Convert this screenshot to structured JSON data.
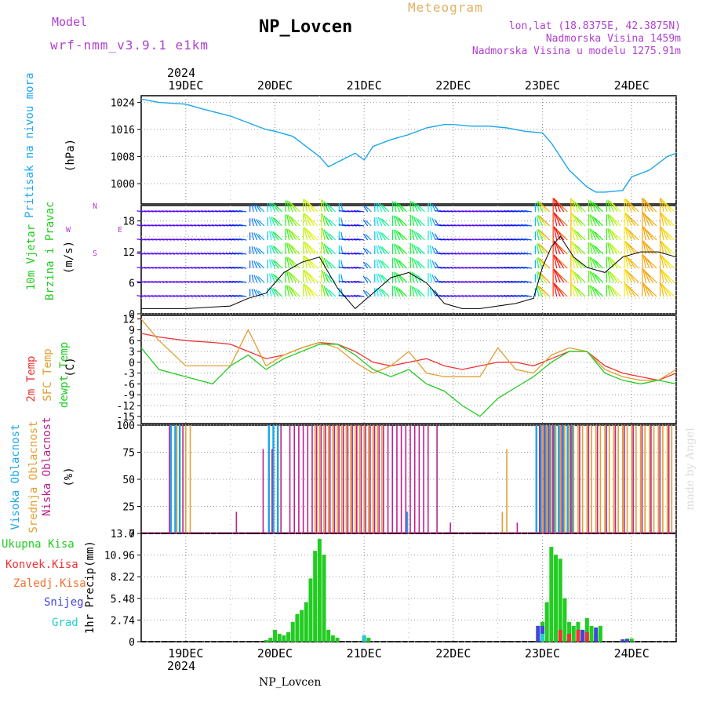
{
  "header": {
    "model_label": "Model",
    "model_name": "wrf-nmm_v3.9.1 e1km",
    "title": "NP_Lovcen",
    "meteogram_label": "Meteogram",
    "lonlat": "lon,lat (18.8375E, 42.3875N)",
    "elevation": "Nadmorska Visina 1459m",
    "elevation_model": "Nadmorska Visina u modelu 1275.91m",
    "year_top": "2024",
    "year_bottom": "2024",
    "footer": "NP_Lovcen",
    "watermark": "made by Angel"
  },
  "x_axis": {
    "days": [
      "19DEC",
      "20DEC",
      "21DEC",
      "22DEC",
      "23DEC",
      "24DEC"
    ],
    "start_day_offset": -0.5,
    "end_day_offset": 5.5
  },
  "panels": {
    "pressure": {
      "ylabel_main": "Pritisak na nivou mora",
      "ylabel_unit": "(hPa)",
      "ticks": [
        "1024",
        "1016",
        "1008",
        "1000"
      ]
    },
    "wind": {
      "ylabel_main": "10m Vjetar",
      "ylabel_sub": "Brzina i Pravac",
      "ylabel_unit": "(m/s)",
      "ticks": [
        "18",
        "12",
        "6",
        "0"
      ],
      "ticks_minor": [
        "15",
        "9",
        "3"
      ],
      "compass": {
        "n": "N",
        "s": "S",
        "e": "E",
        "w": "W"
      }
    },
    "temp": {
      "ylabel_1": "2m Temp",
      "ylabel_2": "SFC Temp",
      "ylabel_3": "dewpt Temp",
      "ylabel_unit": "(C)",
      "ticks": [
        "12",
        "9",
        "6",
        "3",
        "0",
        "-3",
        "-6",
        "-9",
        "-12",
        "-15"
      ]
    },
    "cloud": {
      "ylabel_1": "Visoka Oblacnost",
      "ylabel_2": "Srednja Oblacnost",
      "ylabel_3": "Niska Oblacnost",
      "ylabel_unit": "(%)",
      "ticks": [
        "100",
        "75",
        "50",
        "25",
        "0"
      ]
    },
    "precip": {
      "ylabel_main": "1hr Precip",
      "ylabel_unit": "(mm)",
      "ticks": [
        "13.7",
        "10.96",
        "8.22",
        "5.48",
        "2.74",
        "0"
      ],
      "legend": [
        "Ukupna Kisa",
        "Konvek.Kisa",
        "Zaledj.Kisa",
        "Snijeg",
        "Grad"
      ]
    }
  },
  "colors": {
    "pressure": "#1aa7ec",
    "temp2m": "#ee3333",
    "sfc": "#e0a030",
    "dewpt": "#22cc22",
    "high_cloud": "#1aa7ec",
    "mid_cloud": "#e0a030",
    "low_cloud": "#c0208a",
    "total_rain": "#22cc22",
    "conv_rain": "#ee3333",
    "frz_rain": "#f07030",
    "snow": "#4444dd",
    "hail": "#22cccc",
    "model_label": "#b040d0",
    "meteogram": "#e0b060"
  },
  "chart_data": [
    {
      "type": "line",
      "title": "Pritisak na nivou mora",
      "ylabel": "(hPa)",
      "ylim": [
        994,
        1026
      ],
      "x": [
        -0.5,
        -0.3,
        0,
        0.2,
        0.5,
        0.7,
        0.9,
        1.0,
        1.2,
        1.35,
        1.5,
        1.6,
        1.75,
        1.9,
        2.0,
        2.1,
        2.3,
        2.5,
        2.7,
        2.9,
        3.0,
        3.2,
        3.4,
        3.6,
        3.8,
        4.0,
        4.1,
        4.3,
        4.5,
        4.6,
        4.7,
        4.9,
        5.0,
        5.2,
        5.4,
        5.5
      ],
      "series": [
        {
          "values": [
            1025,
            1024,
            1023.5,
            1022,
            1020,
            1018,
            1016,
            1015.5,
            1014,
            1011,
            1008,
            1005,
            1007,
            1009,
            1007,
            1011,
            1013,
            1014.5,
            1016.5,
            1017.5,
            1017.5,
            1017,
            1017,
            1016.5,
            1015.5,
            1015,
            1012,
            1004,
            999,
            997.5,
            997.5,
            998,
            1002,
            1004,
            1008,
            1009
          ]
        }
      ]
    },
    {
      "type": "line",
      "title": "10m Vjetar Brzina i Pravac",
      "ylabel": "(m/s)",
      "ylim": [
        0,
        21
      ],
      "x": [
        -0.5,
        0,
        0.5,
        0.7,
        0.9,
        1.1,
        1.3,
        1.5,
        1.7,
        1.9,
        2.1,
        2.3,
        2.5,
        2.7,
        2.9,
        3.1,
        3.3,
        3.5,
        3.7,
        3.9,
        4.0,
        4.1,
        4.2,
        4.35,
        4.5,
        4.7,
        4.9,
        5.1,
        5.3,
        5.5
      ],
      "series": [
        {
          "values": [
            1,
            1,
            1.5,
            3,
            4,
            8,
            10,
            11,
            5,
            1,
            4,
            7,
            8,
            6,
            2,
            1,
            1,
            1.5,
            2,
            3,
            9,
            13,
            15,
            11,
            9,
            8,
            11,
            12,
            12,
            11
          ]
        }
      ]
    },
    {
      "type": "line",
      "title": "2m Temp / SFC Temp / dewpt Temp",
      "ylabel": "(C)",
      "ylim": [
        -17,
        13
      ],
      "x": [
        -0.5,
        -0.3,
        0,
        0.3,
        0.5,
        0.7,
        0.9,
        1.1,
        1.3,
        1.5,
        1.7,
        1.9,
        2.1,
        2.3,
        2.5,
        2.7,
        2.9,
        3.1,
        3.3,
        3.5,
        3.7,
        3.9,
        4.1,
        4.3,
        4.5,
        4.7,
        4.9,
        5.1,
        5.3,
        5.5
      ],
      "series": [
        {
          "name": "2m Temp",
          "values": [
            8,
            7,
            6,
            5.5,
            5,
            3,
            1,
            2,
            4,
            5.5,
            5,
            3,
            0,
            -1,
            0,
            1,
            -1,
            -2,
            -1,
            0,
            0,
            -1,
            1,
            3,
            3,
            -1,
            -3,
            -4,
            -5,
            -3
          ]
        },
        {
          "name": "SFC Temp",
          "values": [
            12,
            6,
            -1,
            -1,
            -1,
            9,
            -1,
            2,
            4,
            5.5,
            4,
            0,
            -3,
            -1,
            3,
            -3,
            -4,
            -4,
            -4,
            4,
            -2,
            -3,
            2,
            4,
            3,
            -2,
            -4,
            -5,
            -5,
            -2
          ]
        },
        {
          "name": "dewpt Temp",
          "values": [
            4,
            -2,
            -4,
            -6,
            -1,
            2,
            -2,
            1,
            3,
            5,
            5,
            2,
            -2,
            -4,
            -2,
            -6,
            -8,
            -12,
            -15,
            -10,
            -7,
            -4,
            0,
            3,
            3,
            -3,
            -5,
            -6,
            -5,
            -6
          ]
        }
      ]
    },
    {
      "type": "bar",
      "title": "Visoka / Srednja / Niska Oblacnost",
      "ylabel": "(%)",
      "ylim": [
        0,
        100
      ],
      "series": [
        {
          "name": "Visoka Oblacnost",
          "x": [
            -0.15,
            -0.1,
            -0.05,
            0.95,
            1.0,
            1.05,
            2.5,
            3.95,
            4.0,
            4.05,
            4.1,
            4.15,
            4.2,
            4.25,
            4.3,
            4.35
          ],
          "values": [
            100,
            100,
            100,
            100,
            100,
            100,
            20,
            100,
            100,
            100,
            100,
            100,
            100,
            100,
            100,
            100
          ]
        },
        {
          "name": "Srednja Oblacnost",
          "x": [
            -0.1,
            0,
            0.05,
            1.45,
            1.5,
            1.55,
            1.6,
            1.65,
            1.7,
            1.75,
            1.8,
            1.85,
            1.9,
            1.95,
            2.0,
            2.05,
            2.1,
            2.15,
            2.2,
            3.55,
            3.6,
            4.0,
            4.05,
            4.1,
            4.15,
            4.2,
            4.25,
            4.3,
            4.35,
            4.4,
            4.45,
            4.5,
            4.55,
            4.6,
            4.65,
            4.7,
            4.75,
            4.8,
            4.85,
            4.9,
            4.95,
            5.0,
            5.05,
            5.1,
            5.15,
            5.2,
            5.25,
            5.3,
            5.35,
            5.4,
            5.45
          ],
          "values": [
            100,
            100,
            100,
            100,
            100,
            100,
            100,
            100,
            100,
            100,
            100,
            100,
            100,
            100,
            100,
            100,
            100,
            100,
            100,
            20,
            78,
            100,
            100,
            100,
            100,
            100,
            100,
            100,
            100,
            100,
            100,
            100,
            100,
            100,
            100,
            100,
            100,
            100,
            100,
            100,
            100,
            100,
            100,
            100,
            100,
            100,
            100,
            100,
            100,
            100,
            100
          ]
        },
        {
          "name": "Niska Oblacnost",
          "x": [
            -0.2,
            -0.05,
            0.55,
            0.85,
            0.95,
            1.05,
            1.15,
            1.2,
            1.25,
            1.3,
            1.35,
            1.4,
            1.45,
            1.5,
            1.55,
            1.6,
            1.65,
            1.7,
            1.75,
            1.8,
            1.85,
            1.9,
            1.95,
            2.0,
            2.05,
            2.1,
            2.15,
            2.2,
            2.25,
            2.3,
            2.35,
            2.4,
            2.45,
            2.5,
            2.55,
            2.6,
            2.65,
            2.7,
            2.8,
            2.95,
            3.7,
            3.95,
            4.0,
            4.05,
            4.1,
            4.2,
            4.3,
            4.4,
            4.5,
            4.6,
            4.7,
            4.8,
            4.9,
            5.0,
            5.1,
            5.2,
            5.3,
            5.4
          ],
          "values": [
            100,
            100,
            20,
            78,
            78,
            100,
            100,
            100,
            100,
            100,
            100,
            100,
            100,
            100,
            100,
            100,
            100,
            100,
            100,
            100,
            100,
            100,
            100,
            100,
            100,
            100,
            100,
            100,
            100,
            100,
            100,
            100,
            100,
            100,
            100,
            100,
            100,
            100,
            100,
            10,
            10,
            100,
            100,
            100,
            100,
            100,
            100,
            100,
            100,
            100,
            100,
            100,
            100,
            100,
            100,
            100,
            100,
            100
          ]
        }
      ]
    },
    {
      "type": "bar",
      "title": "1hr Precip",
      "ylabel": "(mm)",
      "ylim": [
        0,
        13.7
      ],
      "series": [
        {
          "name": "Ukupna Kisa",
          "x": [
            0.9,
            0.95,
            1.0,
            1.05,
            1.1,
            1.15,
            1.2,
            1.25,
            1.3,
            1.35,
            1.4,
            1.45,
            1.5,
            1.55,
            1.6,
            1.65,
            1.7,
            2.0,
            2.05,
            3.95,
            4.0,
            4.05,
            4.1,
            4.15,
            4.2,
            4.25,
            4.3,
            4.35,
            4.4,
            4.45,
            4.5,
            4.55,
            4.6,
            4.65,
            4.9,
            4.95,
            5.0
          ],
          "values": [
            0.2,
            0.5,
            1.5,
            1.0,
            0.8,
            1.2,
            2.5,
            3.5,
            4.0,
            5.0,
            8.0,
            11.5,
            13.0,
            11.0,
            1.5,
            0.8,
            0.5,
            0.8,
            0.5,
            2.0,
            2.5,
            5.0,
            12.0,
            11.0,
            10.5,
            5.5,
            2.5,
            2.0,
            2.5,
            1.5,
            3.0,
            2.0,
            1.0,
            2.0,
            0.3,
            0.4,
            0.4
          ]
        },
        {
          "name": "Konvek.Kisa",
          "x": [
            4.2,
            4.3,
            4.4,
            4.5
          ],
          "values": [
            1.5,
            1.0,
            1.5,
            1.2
          ]
        },
        {
          "name": "Snijeg",
          "x": [
            3.95,
            4.0,
            4.45,
            4.6,
            4.9,
            4.95
          ],
          "values": [
            2.0,
            2.0,
            1.5,
            1.8,
            0.3,
            0.3
          ]
        },
        {
          "name": "Grad",
          "x": [
            2.0,
            4.0
          ],
          "values": [
            0.8,
            1.0
          ]
        }
      ]
    }
  ]
}
